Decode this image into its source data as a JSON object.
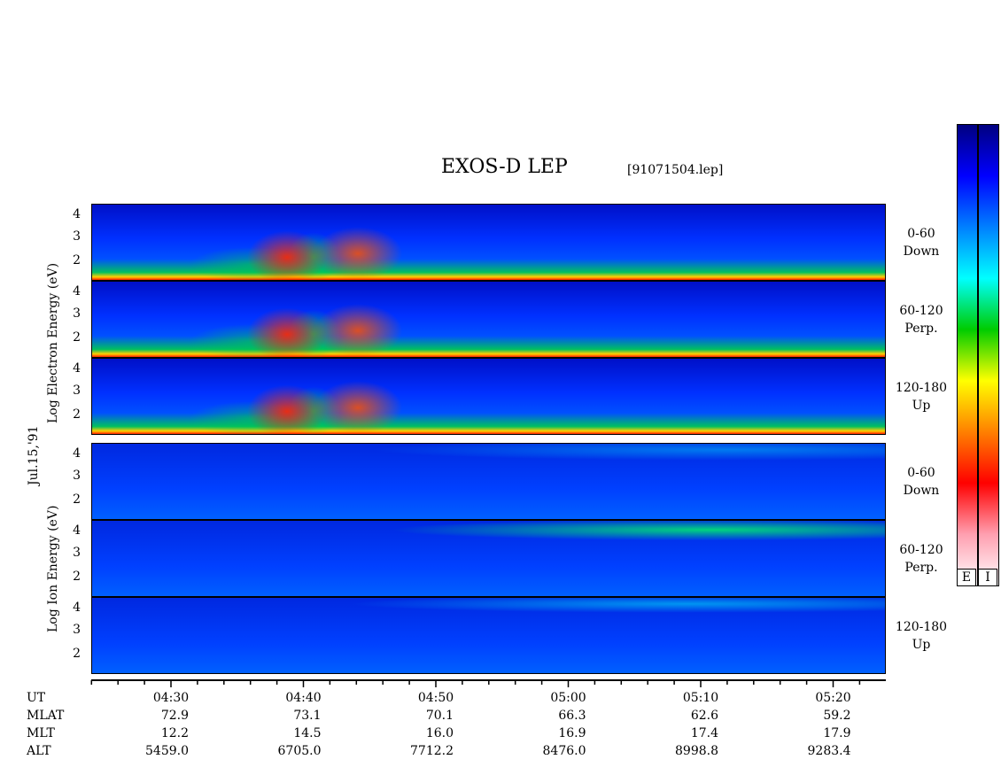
{
  "title": "EXOS-D LEP",
  "file_label": "[91071504.lep]",
  "date_label": "Jul.15,'91",
  "electron_ylabel": "Log   Electron   Energy (eV)",
  "ion_ylabel": "Log   Ion   Energy (eV)",
  "colorbar": {
    "labels": [
      "E",
      "I"
    ],
    "colors": [
      "#ffffff",
      "#ff9fb0",
      "#ff0000",
      "#ff8000",
      "#ffff00",
      "#00cc00",
      "#00ffff",
      "#0080ff",
      "#0000ff",
      "#000080"
    ]
  },
  "chart_data": {
    "type": "heatmap",
    "description_axis": "spectrogram",
    "x_tick_labels": [
      "04:30",
      "04:40",
      "04:50",
      "05:00",
      "05:10",
      "05:20"
    ],
    "y_tick_labels": [
      "4",
      "3",
      "2"
    ],
    "panels": [
      {
        "species": "Electron",
        "pitch": "0-60",
        "direction": "Down"
      },
      {
        "species": "Electron",
        "pitch": "60-120",
        "direction": "Perp."
      },
      {
        "species": "Electron",
        "pitch": "120-180",
        "direction": "Up"
      },
      {
        "species": "Ion",
        "pitch": "0-60",
        "direction": "Down"
      },
      {
        "species": "Ion",
        "pitch": "60-120",
        "direction": "Perp."
      },
      {
        "species": "Ion",
        "pitch": "120-180",
        "direction": "Up"
      }
    ],
    "ephemeris": {
      "row_labels": [
        "UT",
        "MLAT",
        "MLT",
        "ALT"
      ],
      "columns": [
        {
          "UT": "04:30",
          "MLAT": "72.9",
          "MLT": "12.2",
          "ALT": "5459.0"
        },
        {
          "UT": "04:40",
          "MLAT": "73.1",
          "MLT": "14.5",
          "ALT": "6705.0"
        },
        {
          "UT": "04:50",
          "MLAT": "70.1",
          "MLT": "16.0",
          "ALT": "7712.2"
        },
        {
          "UT": "05:00",
          "MLAT": "66.3",
          "MLT": "16.9",
          "ALT": "8476.0"
        },
        {
          "UT": "05:10",
          "MLAT": "62.6",
          "MLT": "17.4",
          "ALT": "8998.8"
        },
        {
          "UT": "05:20",
          "MLAT": "59.2",
          "MLT": "17.9",
          "ALT": "9283.4"
        }
      ]
    }
  }
}
